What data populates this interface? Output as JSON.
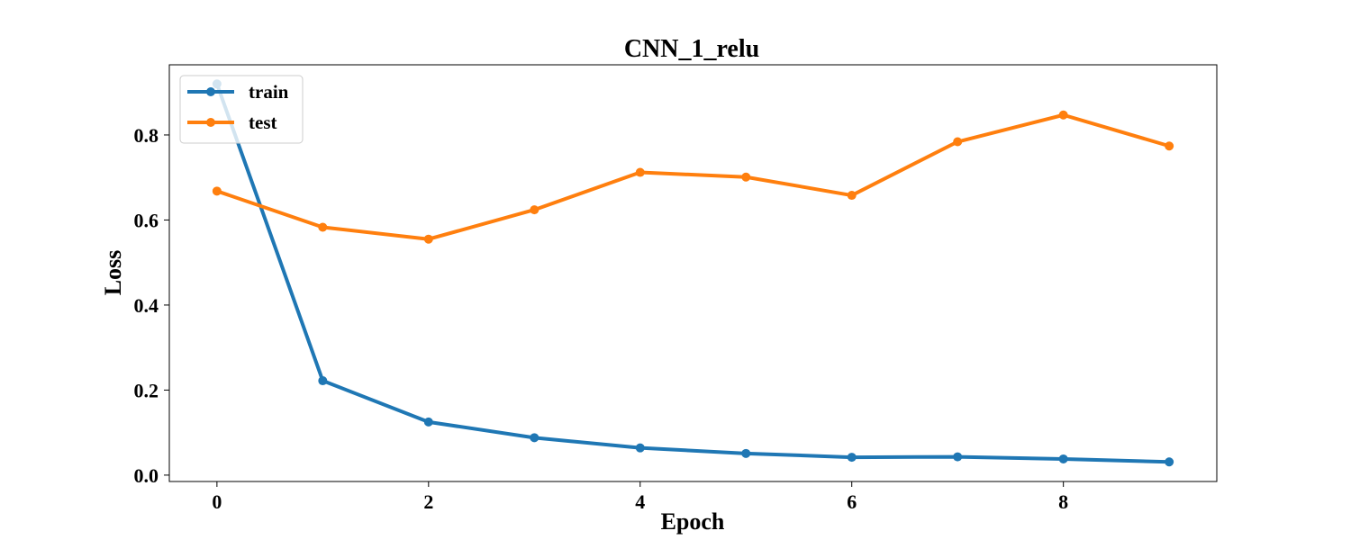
{
  "chart_data": {
    "type": "line",
    "title": "CNN_1_relu",
    "xlabel": "Epoch",
    "ylabel": "Loss",
    "x": [
      0,
      1,
      2,
      3,
      4,
      5,
      6,
      7,
      8,
      9
    ],
    "xlim": [
      -0.45,
      9.45
    ],
    "ylim": [
      -0.015,
      0.965
    ],
    "xticks": [
      0,
      2,
      4,
      6,
      8
    ],
    "yticks": [
      0.0,
      0.2,
      0.4,
      0.6,
      0.8
    ],
    "xtick_labels": [
      "0",
      "2",
      "4",
      "6",
      "8"
    ],
    "ytick_labels": [
      "0.0",
      "0.2",
      "0.4",
      "0.6",
      "0.8"
    ],
    "grid": false,
    "legend_position": "top-left",
    "series": [
      {
        "name": "train",
        "color": "#1f77b4",
        "values": [
          0.92,
          0.222,
          0.125,
          0.088,
          0.064,
          0.051,
          0.042,
          0.043,
          0.038,
          0.031
        ]
      },
      {
        "name": "test",
        "color": "#ff7f0e",
        "values": [
          0.668,
          0.583,
          0.555,
          0.624,
          0.712,
          0.701,
          0.658,
          0.784,
          0.847,
          0.774
        ]
      }
    ]
  }
}
